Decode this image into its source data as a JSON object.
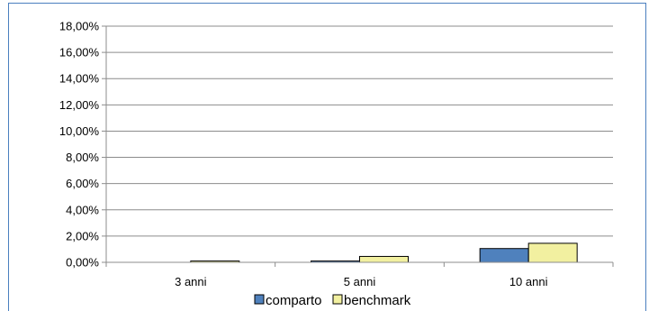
{
  "chart_data": {
    "type": "bar",
    "categories": [
      "3 anni",
      "5 anni",
      "10 anni"
    ],
    "series": [
      {
        "name": "comparto",
        "values": [
          0.0,
          0.1,
          1.05
        ],
        "color": "#4f81bd"
      },
      {
        "name": "benchmark",
        "values": [
          0.1,
          0.45,
          1.45
        ],
        "color": "#f2f0a0"
      }
    ],
    "y_ticks": [
      "0,00%",
      "2,00%",
      "4,00%",
      "6,00%",
      "8,00%",
      "10,00%",
      "12,00%",
      "14,00%",
      "16,00%",
      "18,00%"
    ],
    "ylim": [
      0,
      18
    ],
    "grid": true,
    "legend_position": "bottom",
    "title": "",
    "xlabel": "",
    "ylabel": ""
  }
}
